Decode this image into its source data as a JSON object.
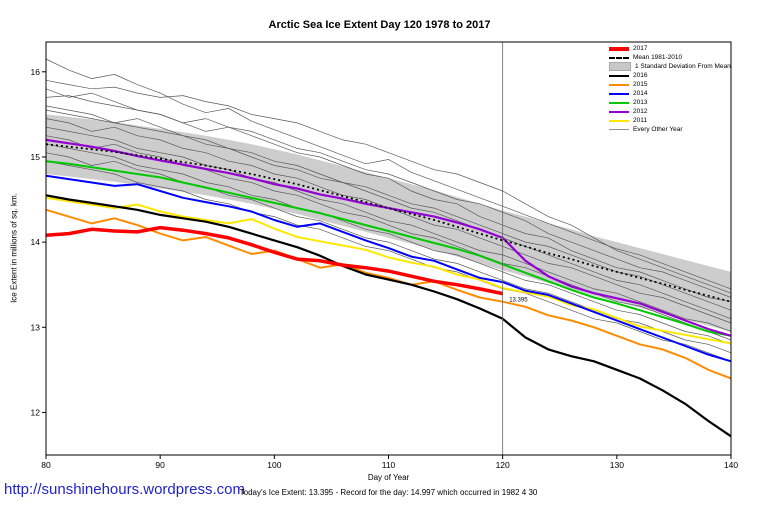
{
  "title": "Arctic Sea Ice Extent Day 120 1978 to 2017",
  "footer": {
    "link": "http://sunshinehours.wordpress.com",
    "link_color": "#2222cc",
    "note": "Today's Ice Extent: 13.395  - Record for the day: 14.997 which occurred in 1982 4 30"
  },
  "chart_data": {
    "type": "line",
    "title": "Arctic Sea Ice Extent Day 120 1978 to 2017",
    "xlabel": "Day of Year",
    "ylabel": "Ice Extent in millions of sq. km.",
    "xlim": [
      80,
      140
    ],
    "ylim": [
      11.5,
      16.35
    ],
    "xticks": [
      80,
      90,
      100,
      110,
      120,
      130,
      140
    ],
    "yticks": [
      12,
      13,
      14,
      15,
      16
    ],
    "grid": false,
    "legend_position": "top-right",
    "vline_x": 120,
    "vline_color": "#666666",
    "band_color": "#cdcdcd",
    "other_color": "#5a5a5a",
    "std": 0.35,
    "annotation": {
      "text": "13.395",
      "x": 120.4,
      "y": 13.3
    },
    "x": [
      80,
      82,
      84,
      86,
      88,
      90,
      92,
      94,
      96,
      98,
      100,
      102,
      104,
      106,
      108,
      110,
      112,
      114,
      116,
      118,
      120,
      122,
      124,
      126,
      128,
      130,
      132,
      134,
      136,
      138,
      140
    ],
    "mean": [
      15.15,
      15.12,
      15.09,
      15.06,
      15.02,
      14.98,
      14.94,
      14.9,
      14.85,
      14.8,
      14.74,
      14.68,
      14.61,
      14.54,
      14.47,
      14.4,
      14.33,
      14.26,
      14.18,
      14.1,
      14.02,
      13.95,
      13.87,
      13.8,
      13.72,
      13.65,
      13.58,
      13.51,
      13.44,
      13.37,
      13.3
    ],
    "series": [
      {
        "name": "2011",
        "color": "#ffe800",
        "width": 2,
        "values": [
          14.52,
          14.48,
          14.44,
          14.4,
          14.44,
          14.36,
          14.3,
          14.26,
          14.22,
          14.27,
          14.16,
          14.06,
          14.01,
          13.96,
          13.91,
          13.82,
          13.76,
          13.71,
          13.62,
          13.56,
          13.46,
          13.41,
          13.36,
          13.26,
          13.21,
          13.11,
          13.01,
          12.96,
          12.91,
          12.86,
          12.81
        ]
      },
      {
        "name": "2015",
        "color": "#ff8c00",
        "width": 2,
        "values": [
          14.38,
          14.3,
          14.22,
          14.28,
          14.2,
          14.1,
          14.02,
          14.06,
          13.96,
          13.86,
          13.9,
          13.8,
          13.7,
          13.74,
          13.64,
          13.58,
          13.5,
          13.54,
          13.44,
          13.35,
          13.3,
          13.24,
          13.14,
          13.08,
          13.0,
          12.9,
          12.8,
          12.74,
          12.64,
          12.5,
          12.4
        ]
      },
      {
        "name": "2014",
        "color": "#0000ff",
        "width": 2,
        "values": [
          14.78,
          14.74,
          14.7,
          14.66,
          14.68,
          14.6,
          14.52,
          14.47,
          14.42,
          14.36,
          14.26,
          14.18,
          14.22,
          14.12,
          14.02,
          13.93,
          13.83,
          13.78,
          13.68,
          13.58,
          13.53,
          13.43,
          13.38,
          13.28,
          13.18,
          13.08,
          12.98,
          12.88,
          12.78,
          12.68,
          12.6
        ]
      },
      {
        "name": "2013",
        "color": "#00c800",
        "width": 2,
        "values": [
          14.95,
          14.92,
          14.88,
          14.84,
          14.8,
          14.76,
          14.7,
          14.64,
          14.58,
          14.52,
          14.46,
          14.4,
          14.34,
          14.27,
          14.2,
          14.13,
          14.06,
          13.99,
          13.92,
          13.84,
          13.74,
          13.64,
          13.54,
          13.44,
          13.35,
          13.28,
          13.2,
          13.12,
          13.04,
          12.95,
          12.9
        ]
      },
      {
        "name": "2012",
        "color": "#9400d3",
        "width": 2.2,
        "values": [
          15.2,
          15.16,
          15.12,
          15.07,
          15.01,
          14.96,
          14.91,
          14.86,
          14.81,
          14.75,
          14.68,
          14.63,
          14.56,
          14.51,
          14.45,
          14.4,
          14.35,
          14.3,
          14.23,
          14.15,
          14.05,
          13.78,
          13.6,
          13.48,
          13.4,
          13.34,
          13.28,
          13.18,
          13.08,
          12.98,
          12.9
        ]
      },
      {
        "name": "2016",
        "color": "#000000",
        "width": 2.2,
        "values": [
          14.55,
          14.5,
          14.46,
          14.42,
          14.38,
          14.32,
          14.28,
          14.24,
          14.18,
          14.1,
          14.02,
          13.94,
          13.84,
          13.72,
          13.62,
          13.56,
          13.5,
          13.42,
          13.33,
          13.22,
          13.1,
          12.88,
          12.74,
          12.66,
          12.6,
          12.5,
          12.4,
          12.26,
          12.1,
          11.9,
          11.72
        ]
      },
      {
        "name": "2017",
        "color": "#ff0000",
        "width": 3.5,
        "values": [
          14.08,
          14.1,
          14.15,
          14.13,
          14.12,
          14.17,
          14.14,
          14.1,
          14.05,
          13.97,
          13.88,
          13.8,
          13.78,
          13.73,
          13.7,
          13.66,
          13.6,
          13.54,
          13.5,
          13.45,
          13.395
        ]
      }
    ],
    "other_years": [
      [
        15.9,
        15.85,
        15.8,
        15.82,
        15.75,
        15.7,
        15.72,
        15.65,
        15.6,
        15.5,
        15.45,
        15.4,
        15.3,
        15.2,
        15.15,
        15.05,
        14.95,
        14.85,
        14.8,
        14.7,
        14.6,
        14.45,
        14.3,
        14.2,
        14.05,
        13.9,
        13.8,
        13.7,
        13.6,
        13.5,
        13.4
      ],
      [
        15.7,
        15.72,
        15.65,
        15.6,
        15.55,
        15.5,
        15.4,
        15.45,
        15.35,
        15.3,
        15.2,
        15.1,
        15.05,
        14.95,
        14.85,
        14.8,
        14.7,
        14.6,
        14.5,
        14.45,
        14.35,
        14.25,
        14.1,
        14.0,
        13.9,
        13.8,
        13.7,
        13.65,
        13.55,
        13.45,
        13.35
      ],
      [
        15.55,
        15.5,
        15.45,
        15.4,
        15.35,
        15.3,
        15.25,
        15.15,
        15.1,
        15.0,
        14.9,
        14.85,
        14.75,
        14.7,
        14.6,
        14.5,
        14.4,
        14.35,
        14.25,
        14.15,
        14.05,
        13.95,
        13.85,
        13.75,
        13.65,
        13.55,
        13.5,
        13.4,
        13.3,
        13.2,
        13.1
      ],
      [
        15.45,
        15.4,
        15.3,
        15.35,
        15.25,
        15.2,
        15.1,
        15.05,
        14.95,
        14.9,
        14.8,
        14.75,
        14.65,
        14.55,
        14.5,
        14.4,
        14.3,
        14.2,
        14.15,
        14.05,
        13.95,
        13.85,
        13.75,
        13.7,
        13.6,
        13.5,
        13.4,
        13.35,
        13.25,
        13.15,
        13.05
      ],
      [
        15.35,
        15.3,
        15.25,
        15.2,
        15.1,
        15.05,
        15.0,
        14.9,
        14.85,
        14.75,
        14.7,
        14.6,
        14.5,
        14.45,
        14.35,
        14.25,
        14.2,
        14.1,
        14.0,
        13.9,
        13.85,
        13.75,
        13.65,
        13.55,
        13.45,
        13.4,
        13.3,
        13.2,
        13.1,
        13.05,
        12.95
      ],
      [
        15.25,
        15.2,
        15.1,
        15.15,
        15.05,
        15.0,
        14.9,
        14.85,
        14.75,
        14.7,
        14.6,
        14.55,
        14.45,
        14.35,
        14.3,
        14.2,
        14.1,
        14.05,
        13.95,
        13.85,
        13.75,
        13.7,
        13.6,
        13.5,
        13.4,
        13.3,
        13.25,
        13.15,
        13.05,
        12.95,
        12.85
      ],
      [
        15.15,
        15.1,
        15.05,
        15.0,
        14.9,
        14.85,
        14.8,
        14.7,
        14.65,
        14.55,
        14.5,
        14.4,
        14.35,
        14.25,
        14.15,
        14.1,
        14.0,
        13.9,
        13.85,
        13.75,
        13.65,
        13.55,
        13.5,
        13.4,
        13.3,
        13.2,
        13.15,
        13.05,
        12.95,
        12.9,
        12.8
      ],
      [
        15.05,
        15.0,
        14.9,
        14.95,
        14.85,
        14.8,
        14.7,
        14.65,
        14.55,
        14.5,
        14.4,
        14.3,
        14.25,
        14.15,
        14.05,
        14.0,
        13.9,
        13.8,
        13.75,
        13.65,
        13.55,
        13.45,
        13.4,
        13.3,
        13.2,
        13.1,
        13.05,
        12.95,
        12.85,
        12.8,
        12.7
      ],
      [
        16.15,
        16.02,
        15.92,
        15.97,
        15.85,
        15.75,
        15.62,
        15.52,
        15.57,
        15.42,
        15.32,
        15.22,
        15.12,
        15.02,
        14.92,
        14.97,
        14.82,
        14.72,
        14.62,
        14.52,
        14.42,
        14.32,
        14.22,
        14.12,
        14.02,
        13.92,
        13.85,
        13.75,
        13.65,
        13.55,
        13.45
      ],
      [
        15.6,
        15.55,
        15.5,
        15.4,
        15.45,
        15.35,
        15.25,
        15.2,
        15.1,
        15.05,
        14.95,
        14.9,
        14.8,
        14.7,
        14.65,
        14.55,
        14.45,
        14.4,
        14.3,
        14.2,
        14.1,
        14.0,
        13.95,
        13.85,
        13.75,
        13.65,
        13.6,
        13.5,
        13.4,
        13.3,
        13.2
      ],
      [
        14.95,
        14.9,
        14.85,
        14.8,
        14.7,
        14.65,
        14.6,
        14.5,
        14.45,
        14.35,
        14.3,
        14.2,
        14.15,
        14.05,
        13.95,
        13.9,
        13.8,
        13.7,
        13.65,
        13.55,
        13.45,
        13.4,
        13.3,
        13.2,
        13.1,
        13.05,
        12.95,
        12.85,
        12.8,
        12.7,
        12.6
      ],
      [
        15.8,
        15.7,
        15.75,
        15.65,
        15.55,
        15.5,
        15.4,
        15.3,
        15.35,
        15.25,
        15.15,
        15.05,
        15.0,
        14.9,
        14.8,
        14.75,
        14.6,
        14.5,
        14.45,
        14.3,
        14.2,
        14.1,
        14.05,
        13.9,
        13.8,
        13.7,
        13.65,
        13.55,
        13.45,
        13.35,
        13.3
      ]
    ],
    "legend": [
      {
        "label": "2017",
        "color": "#ff0000",
        "style": "thick"
      },
      {
        "label": "Mean 1981-2010",
        "color": "#000000",
        "style": "dashed"
      },
      {
        "label": "1 Standard Deviation From Mean",
        "color": "#c8c8c8",
        "style": "box"
      },
      {
        "label": "2016",
        "color": "#000000",
        "style": "line"
      },
      {
        "label": "2015",
        "color": "#ff8c00",
        "style": "line"
      },
      {
        "label": "2014",
        "color": "#0000ff",
        "style": "line"
      },
      {
        "label": "2013",
        "color": "#00c800",
        "style": "line"
      },
      {
        "label": "2012",
        "color": "#9400d3",
        "style": "line"
      },
      {
        "label": "2011",
        "color": "#ffe800",
        "style": "line"
      },
      {
        "label": "Every Other Year",
        "color": "#909090",
        "style": "thin"
      }
    ]
  }
}
